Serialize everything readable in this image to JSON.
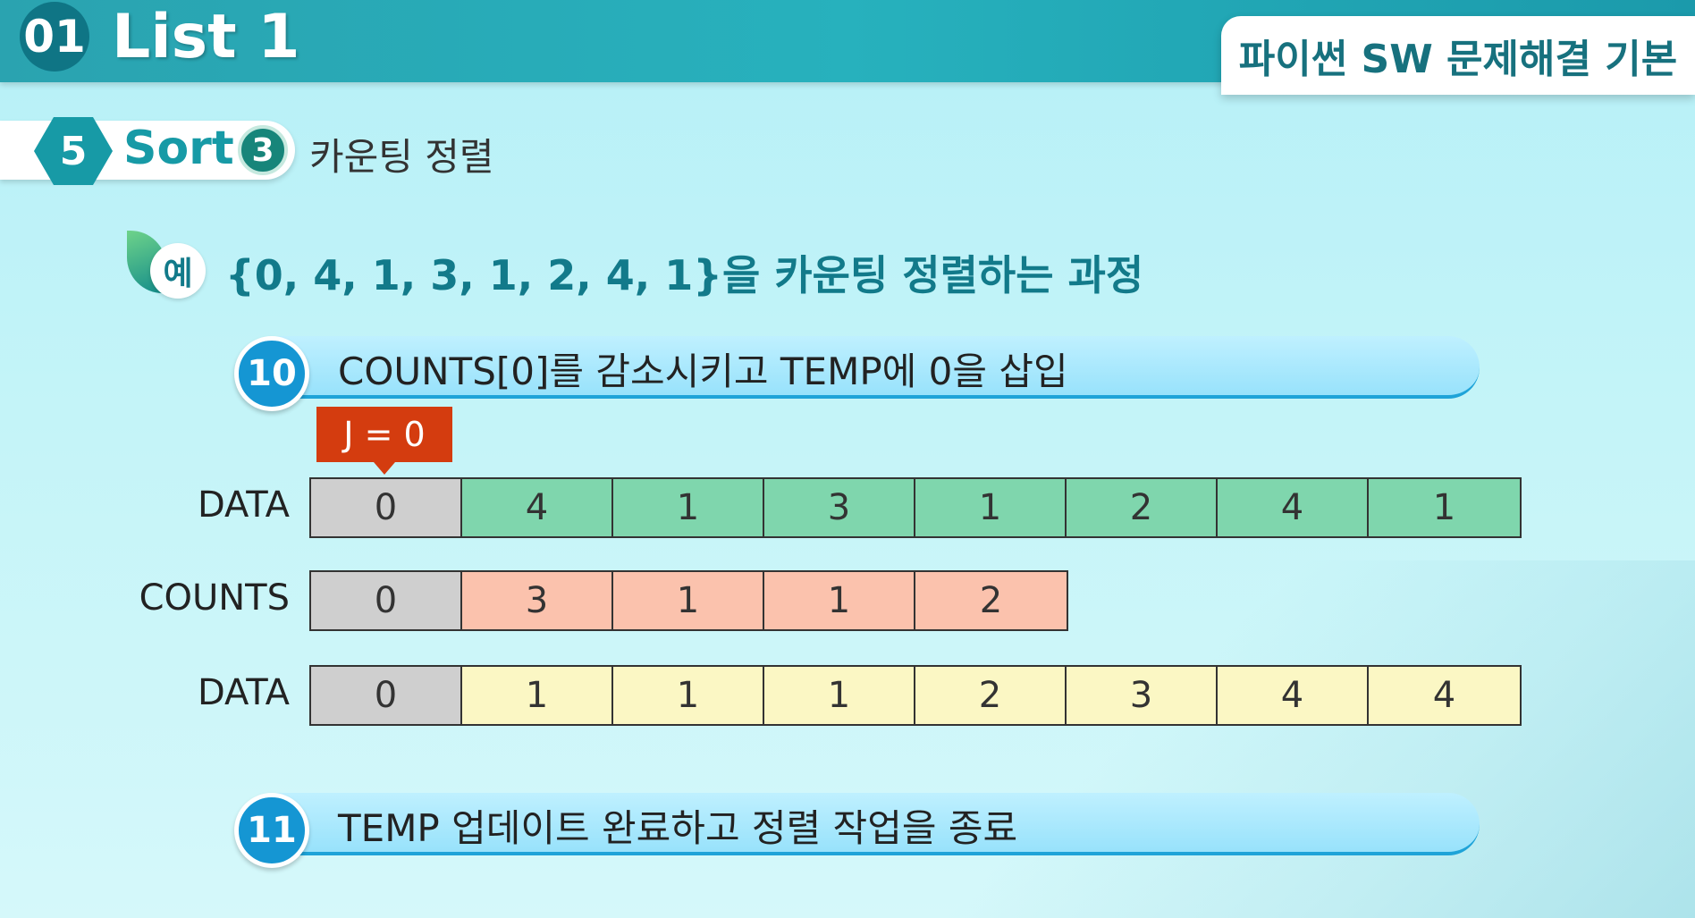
{
  "header": {
    "chapter_num": "01",
    "chapter_title": "List 1",
    "course_title": "파이썬 SW 문제해결 기본"
  },
  "section": {
    "number": "5",
    "label": "Sort",
    "sub_number": "3",
    "sub_title": "카운팅 정렬"
  },
  "example": {
    "badge": "예",
    "title": "{0, 4, 1, 3, 1, 2, 4, 1}을 카운팅 정렬하는 과정"
  },
  "steps": [
    {
      "num": "10",
      "text": "COUNTS[0]를 감소시키고 TEMP에 0을 삽입"
    },
    {
      "num": "11",
      "text": "TEMP 업데이트 완료하고 정렬 작업을 종료"
    }
  ],
  "pointer": {
    "label": "J = 0"
  },
  "arrays": {
    "data": {
      "label": "DATA",
      "values": [
        "0",
        "4",
        "1",
        "3",
        "1",
        "2",
        "4",
        "1"
      ]
    },
    "counts": {
      "label": "COUNTS",
      "values": [
        "0",
        "3",
        "1",
        "1",
        "2"
      ]
    },
    "temp": {
      "label": "DATA",
      "values": [
        "0",
        "1",
        "1",
        "1",
        "2",
        "3",
        "4",
        "4"
      ]
    }
  },
  "colors": {
    "highlight": "#cfcfcf",
    "data": "#7fd6ad",
    "counts": "#fbc2ad",
    "temp": "#fbf7c4",
    "pointer": "#d43c0f"
  }
}
